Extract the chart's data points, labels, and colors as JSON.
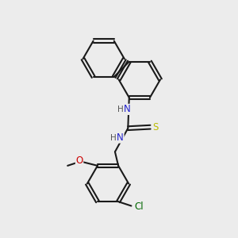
{
  "background_color": "#ececec",
  "bond_color": "#1a1a1a",
  "bond_width": 1.5,
  "atom_colors": {
    "N": "#2222cc",
    "S": "#bbbb00",
    "O": "#cc0000",
    "Cl": "#006600",
    "H": "#555555"
  },
  "font_size": 8.5,
  "figsize": [
    3.0,
    3.0
  ],
  "dpi": 100
}
